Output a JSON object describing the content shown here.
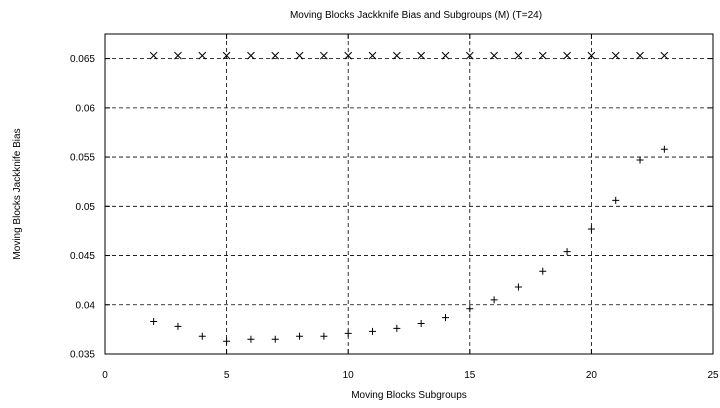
{
  "chart_data": {
    "type": "scatter",
    "title": "Moving Blocks Jackknife Bias and Subgroups (M) (T=24)",
    "xlabel": "Moving Blocks Subgroups",
    "ylabel": "Moving Blocks Jackknife Bias",
    "xlim": [
      0,
      25
    ],
    "ylim": [
      0.035,
      0.0675
    ],
    "x_ticks": [
      0,
      5,
      10,
      15,
      20,
      25
    ],
    "x_tick_labels": [
      "0",
      "5",
      "10",
      "15",
      "20",
      "25"
    ],
    "y_ticks": [
      0.035,
      0.04,
      0.045,
      0.05,
      0.055,
      0.06,
      0.065
    ],
    "y_tick_labels": [
      "0.035",
      "0.04",
      "0.045",
      "0.05",
      "0.055",
      "0.06",
      "0.065"
    ],
    "grid": true,
    "legend": "none",
    "series": [
      {
        "marker": "plus",
        "x": [
          2,
          3,
          4,
          5,
          6,
          7,
          8,
          9,
          10,
          11,
          12,
          13,
          14,
          15,
          16,
          17,
          18,
          19,
          20,
          21,
          22,
          23
        ],
        "y": [
          0.0383,
          0.0378,
          0.0368,
          0.0363,
          0.0365,
          0.0365,
          0.0368,
          0.0368,
          0.0371,
          0.0373,
          0.0376,
          0.0381,
          0.0387,
          0.0396,
          0.0405,
          0.0418,
          0.0434,
          0.0454,
          0.0477,
          0.0506,
          0.0547,
          0.0558
        ]
      },
      {
        "marker": "cross",
        "x": [
          2,
          3,
          4,
          5,
          6,
          7,
          8,
          9,
          10,
          11,
          12,
          13,
          14,
          15,
          16,
          17,
          18,
          19,
          20,
          21,
          22,
          23
        ],
        "y": [
          0.0653,
          0.0653,
          0.0653,
          0.0653,
          0.0653,
          0.0653,
          0.0653,
          0.0653,
          0.0653,
          0.0653,
          0.0653,
          0.0653,
          0.0653,
          0.0653,
          0.0653,
          0.0653,
          0.0653,
          0.0653,
          0.0653,
          0.0653,
          0.0653,
          0.0653
        ]
      }
    ]
  }
}
